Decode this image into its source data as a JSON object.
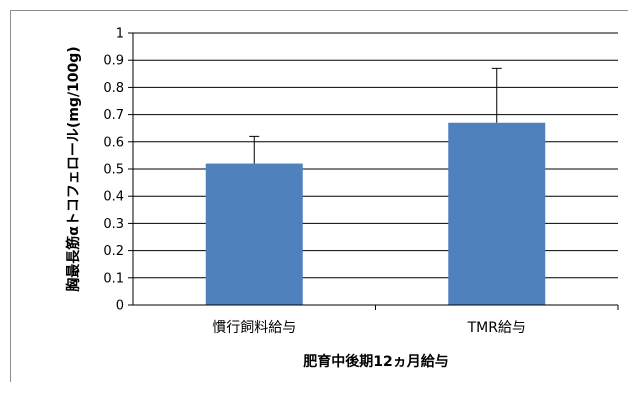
{
  "chart_data": {
    "type": "bar",
    "categories": [
      "慣行飼料給与",
      "TMR給与"
    ],
    "values": [
      0.52,
      0.67
    ],
    "error": [
      0.1,
      0.2
    ],
    "xlabel": "肥育中後期12ヵ月給与",
    "ylabel": "胸最長筋αトコフェロール(mg/100g)",
    "ylim": [
      0,
      1
    ],
    "yticks": [
      "0",
      "0.1",
      "0.2",
      "0.3",
      "0.4",
      "0.5",
      "0.6",
      "0.7",
      "0.8",
      "0.9",
      "1"
    ],
    "grid": true,
    "bar_color": "#4f81bd",
    "legend": "none"
  }
}
